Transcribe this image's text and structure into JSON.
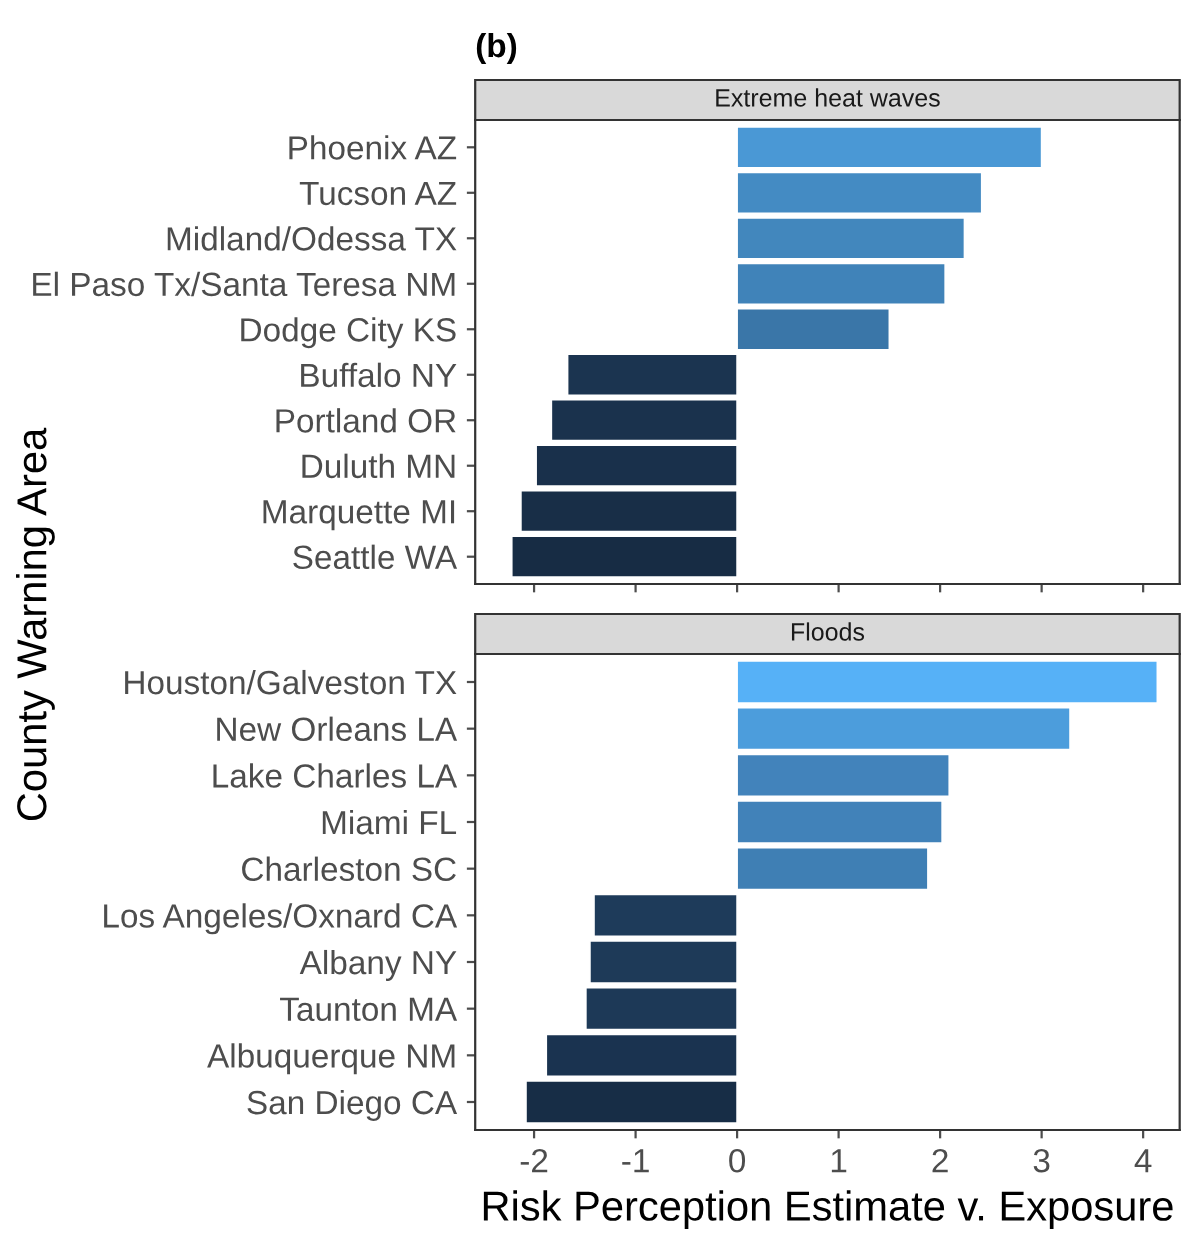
{
  "chart_data": [
    {
      "type": "bar",
      "orientation": "horizontal",
      "title": "(b)",
      "subtitle": "Extreme heat waves",
      "ylabel": "County Warning Area",
      "categories": [
        "Phoenix AZ",
        "Tucson AZ",
        "Midland/Odessa TX",
        "El Paso Tx/Santa Teresa NM",
        "Dodge City KS",
        "Buffalo NY",
        "Portland OR",
        "Duluth MN",
        "Marquette MI",
        "Seattle WA"
      ],
      "values": [
        3.0,
        2.41,
        2.24,
        2.05,
        1.5,
        -1.67,
        -1.83,
        -1.98,
        -2.13,
        -2.22
      ],
      "colors": [
        "#4a98d5",
        "#448bc3",
        "#4287bd",
        "#4083b9",
        "#3a76a8",
        "#1b3450",
        "#1a324d",
        "#19304b",
        "#182e47",
        "#172c44"
      ],
      "xlim": [
        -2.58,
        4.36
      ],
      "xticks": [
        -2,
        -1,
        0,
        1,
        2,
        3,
        4
      ],
      "tick_labels": "y",
      "grid": false,
      "legend": false
    },
    {
      "type": "bar",
      "orientation": "horizontal",
      "subtitle": "Floods",
      "xlabel": "Risk Perception Estimate v. Exposure",
      "categories": [
        "Houston/Galveston TX",
        "New Orleans LA",
        "Lake Charles LA",
        "Miami FL",
        "Charleston SC",
        "Los Angeles/Oxnard CA",
        "Albany NY",
        "Taunton MA",
        "Albuquerque NM",
        "San Diego CA"
      ],
      "values": [
        4.14,
        3.28,
        2.09,
        2.02,
        1.88,
        -1.41,
        -1.45,
        -1.49,
        -1.88,
        -2.08
      ],
      "colors": [
        "#56b1f7",
        "#4c9ddc",
        "#4283bb",
        "#4182b9",
        "#3f7fb4",
        "#1e3b5a",
        "#1e3a58",
        "#1d3957",
        "#1a3350",
        "#172d46"
      ],
      "xlim": [
        -2.58,
        4.36
      ],
      "xticks": [
        -2,
        -1,
        0,
        1,
        2,
        3,
        4
      ],
      "grid": false,
      "legend": false
    }
  ]
}
